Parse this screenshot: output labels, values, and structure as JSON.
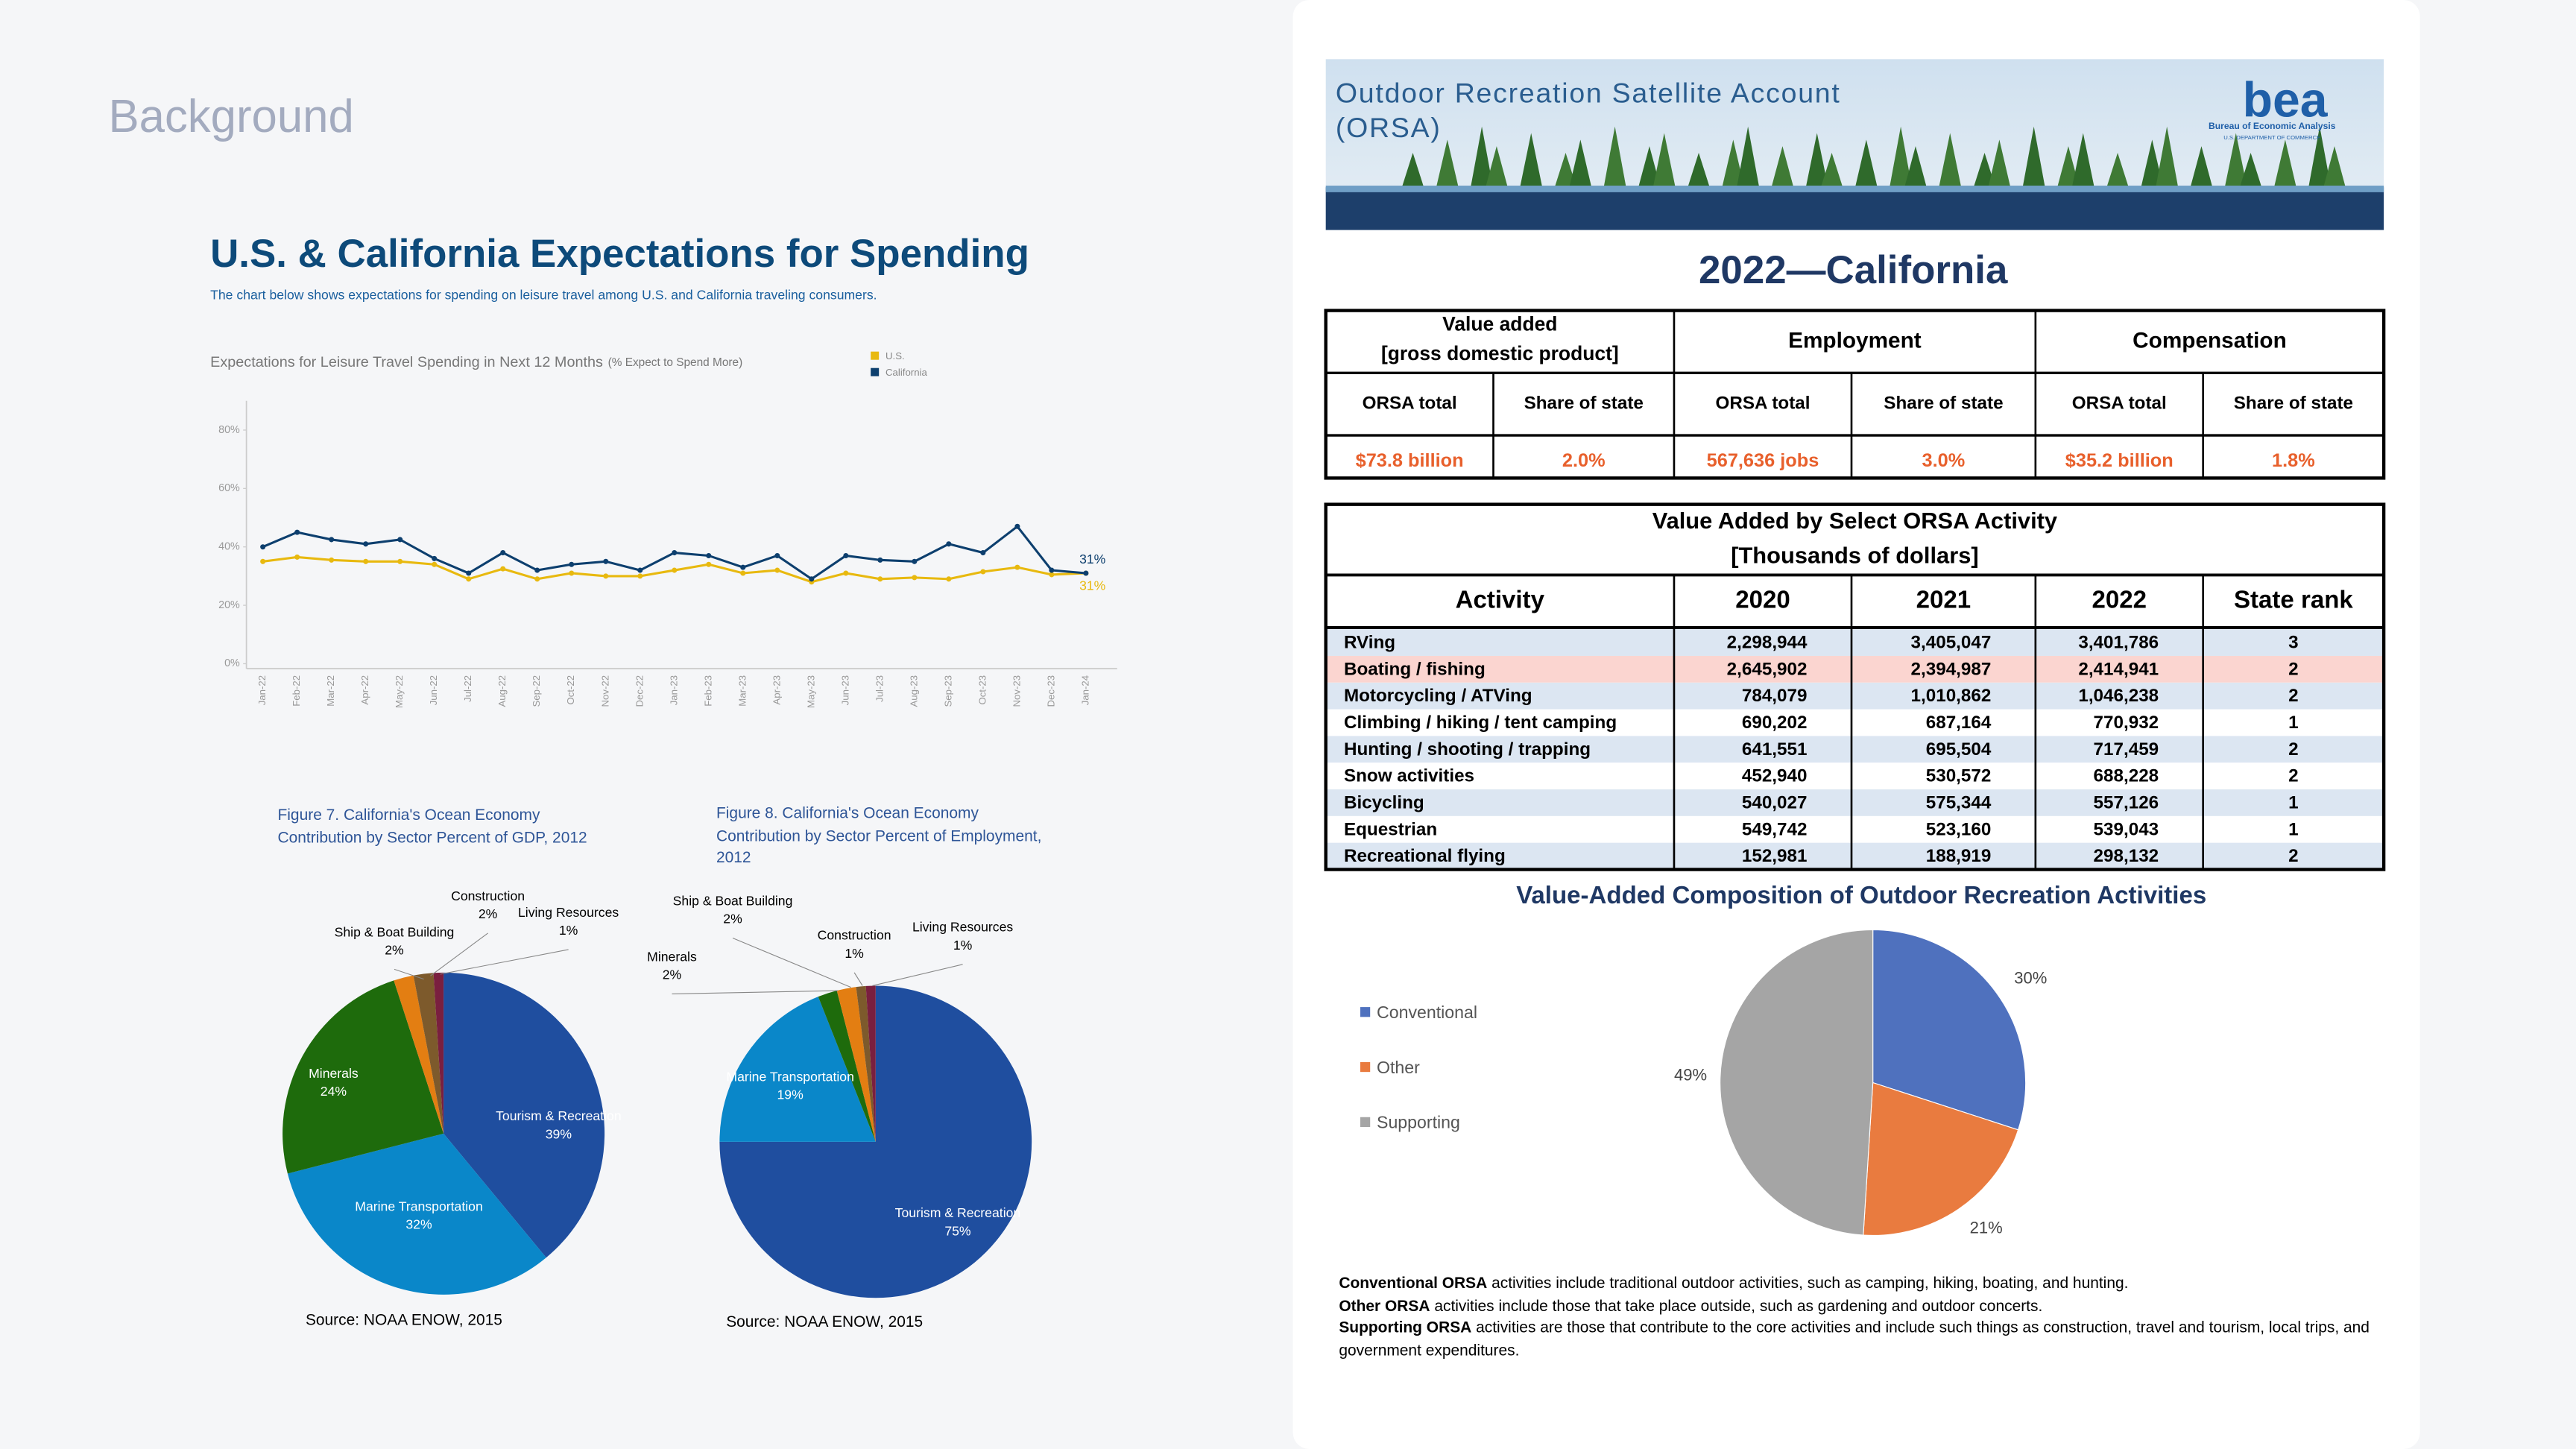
{
  "heading": "Background",
  "title": "U.S. & California Expectations for Spending",
  "subtitle": "The chart below shows expectations for spending on leisure travel among U.S. and California traveling consumers.",
  "chart_data": [
    {
      "type": "line",
      "title": "Expectations for Leisure Travel Spending in Next 12 Months",
      "title_note": "(% Expect to Spend More)",
      "categories": [
        "Jan-22",
        "Feb-22",
        "Mar-22",
        "Apr-22",
        "May-22",
        "Jun-22",
        "Jul-22",
        "Aug-22",
        "Sep-22",
        "Oct-22",
        "Nov-22",
        "Dec-22",
        "Jan-23",
        "Feb-23",
        "Mar-23",
        "Apr-23",
        "May-23",
        "Jun-23",
        "Jul-23",
        "Aug-23",
        "Sep-23",
        "Oct-23",
        "Nov-23",
        "Dec-23",
        "Jan-24"
      ],
      "series": [
        {
          "name": "U.S.",
          "color": "#e8b90f",
          "values": [
            35,
            36.5,
            35.5,
            35,
            35,
            34,
            29,
            32.5,
            29,
            31,
            30,
            30,
            32,
            34,
            31,
            32,
            28,
            31,
            29,
            29.5,
            29,
            31.5,
            33,
            30.5,
            31
          ],
          "value_labels": [
            null,
            null,
            null,
            null,
            null,
            null,
            null,
            null,
            null,
            null,
            null,
            null,
            null,
            null,
            null,
            null,
            null,
            null,
            null,
            null,
            null,
            null,
            null,
            null,
            "31%"
          ]
        },
        {
          "name": "California",
          "color": "#0d3f6e",
          "values": [
            40,
            45,
            42.5,
            41,
            42.5,
            36,
            31,
            38,
            32,
            34,
            35,
            32,
            38,
            37,
            33,
            37,
            29,
            37,
            35.5,
            35,
            41,
            38,
            47,
            32,
            31
          ],
          "value_labels": [
            null,
            null,
            null,
            null,
            null,
            null,
            null,
            null,
            null,
            null,
            null,
            null,
            null,
            null,
            null,
            null,
            null,
            null,
            null,
            null,
            null,
            null,
            null,
            null,
            "31%"
          ]
        }
      ],
      "ylim": [
        0,
        90
      ],
      "yticks": [
        {
          "value": 0,
          "label": "0%"
        },
        {
          "value": 20,
          "label": "20%"
        },
        {
          "value": 40,
          "label": "40%"
        },
        {
          "value": 60,
          "label": "60%"
        },
        {
          "value": 80,
          "label": "80%"
        }
      ],
      "grid": false,
      "legend": "top-right"
    },
    {
      "type": "pie",
      "title": "Figure 7. California's Ocean Economy Contribution by Sector Percent of GDP, 2012",
      "categories": [
        "Tourism & Recreation",
        "Marine Transportation",
        "Minerals",
        "Ship & Boat Building",
        "Construction",
        "Living Resources"
      ],
      "values": [
        39,
        32,
        24,
        2,
        2,
        1
      ],
      "value_labels": [
        "39%",
        "32%",
        "24%",
        "2%",
        "2%",
        "1%"
      ],
      "colors": [
        "#1f4e9f",
        "#0a87c9",
        "#1e6b0c",
        "#e37e12",
        "#7d5a2c",
        "#7a1f3f"
      ],
      "source": "Source: NOAA ENOW, 2015"
    },
    {
      "type": "pie",
      "title": "Figure 8. California's Ocean Economy Contribution by Sector Percent of Employment, 2012",
      "categories": [
        "Tourism & Recreation",
        "Marine Transportation",
        "Minerals",
        "Ship & Boat Building",
        "Construction",
        "Living Resources"
      ],
      "values": [
        75,
        19,
        2,
        2,
        1,
        1
      ],
      "value_labels": [
        "75%",
        "19%",
        "2%",
        "2%",
        "1%",
        "1%"
      ],
      "colors": [
        "#1f4e9f",
        "#0a87c9",
        "#1e6b0c",
        "#e37e12",
        "#7d5a2c",
        "#7a1f3f"
      ],
      "source": "Source: NOAA ENOW, 2015"
    },
    {
      "type": "pie",
      "title": "Value-Added Composition of Outdoor Recreation Activities",
      "categories": [
        "Conventional",
        "Other",
        "Supporting"
      ],
      "values": [
        30,
        21,
        49
      ],
      "value_labels": [
        "30%",
        "21%",
        "49%"
      ],
      "colors": [
        "#4f71be",
        "#e97b3f",
        "#a5a5a5"
      ],
      "legend": "left"
    }
  ],
  "banner": {
    "title": [
      "Outdoor Recreation Satellite Account",
      "(ORSA)"
    ],
    "logo": "bea",
    "agency": "Bureau of Economic Analysis",
    "department": "U.S. DEPARTMENT OF COMMERCE"
  },
  "state_title": "2022—California",
  "summary": {
    "groups": [
      {
        "title": "Value added",
        "note": "[gross domestic product]"
      },
      {
        "title": "Employment"
      },
      {
        "title": "Compensation"
      }
    ],
    "subheaders": [
      "ORSA total",
      "Share of state",
      "ORSA total",
      "Share of state",
      "ORSA total",
      "Share of state"
    ],
    "values": [
      "$73.8 billion",
      "2.0%",
      "567,636 jobs",
      "3.0%",
      "$35.2 billion",
      "1.8%"
    ]
  },
  "activity_table": {
    "title": "Value Added by Select ORSA Activity",
    "subtitle": "[Thousands of dollars]",
    "columns": [
      "Activity",
      "2020",
      "2021",
      "2022",
      "State rank"
    ],
    "rows": [
      [
        "RVing",
        "2,298,944",
        "3,405,047",
        "3,401,786",
        3
      ],
      [
        "Boating / fishing",
        "2,645,902",
        "2,394,987",
        "2,414,941",
        2
      ],
      [
        "Motorcycling / ATVing",
        "784,079",
        "1,010,862",
        "1,046,238",
        2
      ],
      [
        "Climbing / hiking / tent camping",
        "690,202",
        "687,164",
        "770,932",
        1
      ],
      [
        "Hunting / shooting / trapping",
        "641,551",
        "695,504",
        "717,459",
        2
      ],
      [
        "Snow activities",
        "452,940",
        "530,572",
        "688,228",
        2
      ],
      [
        "Bicycling",
        "540,027",
        "575,344",
        "557,126",
        1
      ],
      [
        "Equestrian",
        "549,742",
        "523,160",
        "539,043",
        1
      ],
      [
        "Recreational flying",
        "152,981",
        "188,919",
        "298,132",
        2
      ]
    ]
  },
  "footnotes": [
    {
      "term": "Conventional ORSA",
      "text": " activities include traditional outdoor activities, such as camping, hiking, boating, and hunting."
    },
    {
      "term": "Other ORSA",
      "text": " activities include those that take place outside, such as gardening and outdoor concerts."
    },
    {
      "term": "Supporting ORSA",
      "text": " activities are those that contribute to the core activities and include such things as construction, travel and tourism, local trips, and government expenditures."
    }
  ]
}
